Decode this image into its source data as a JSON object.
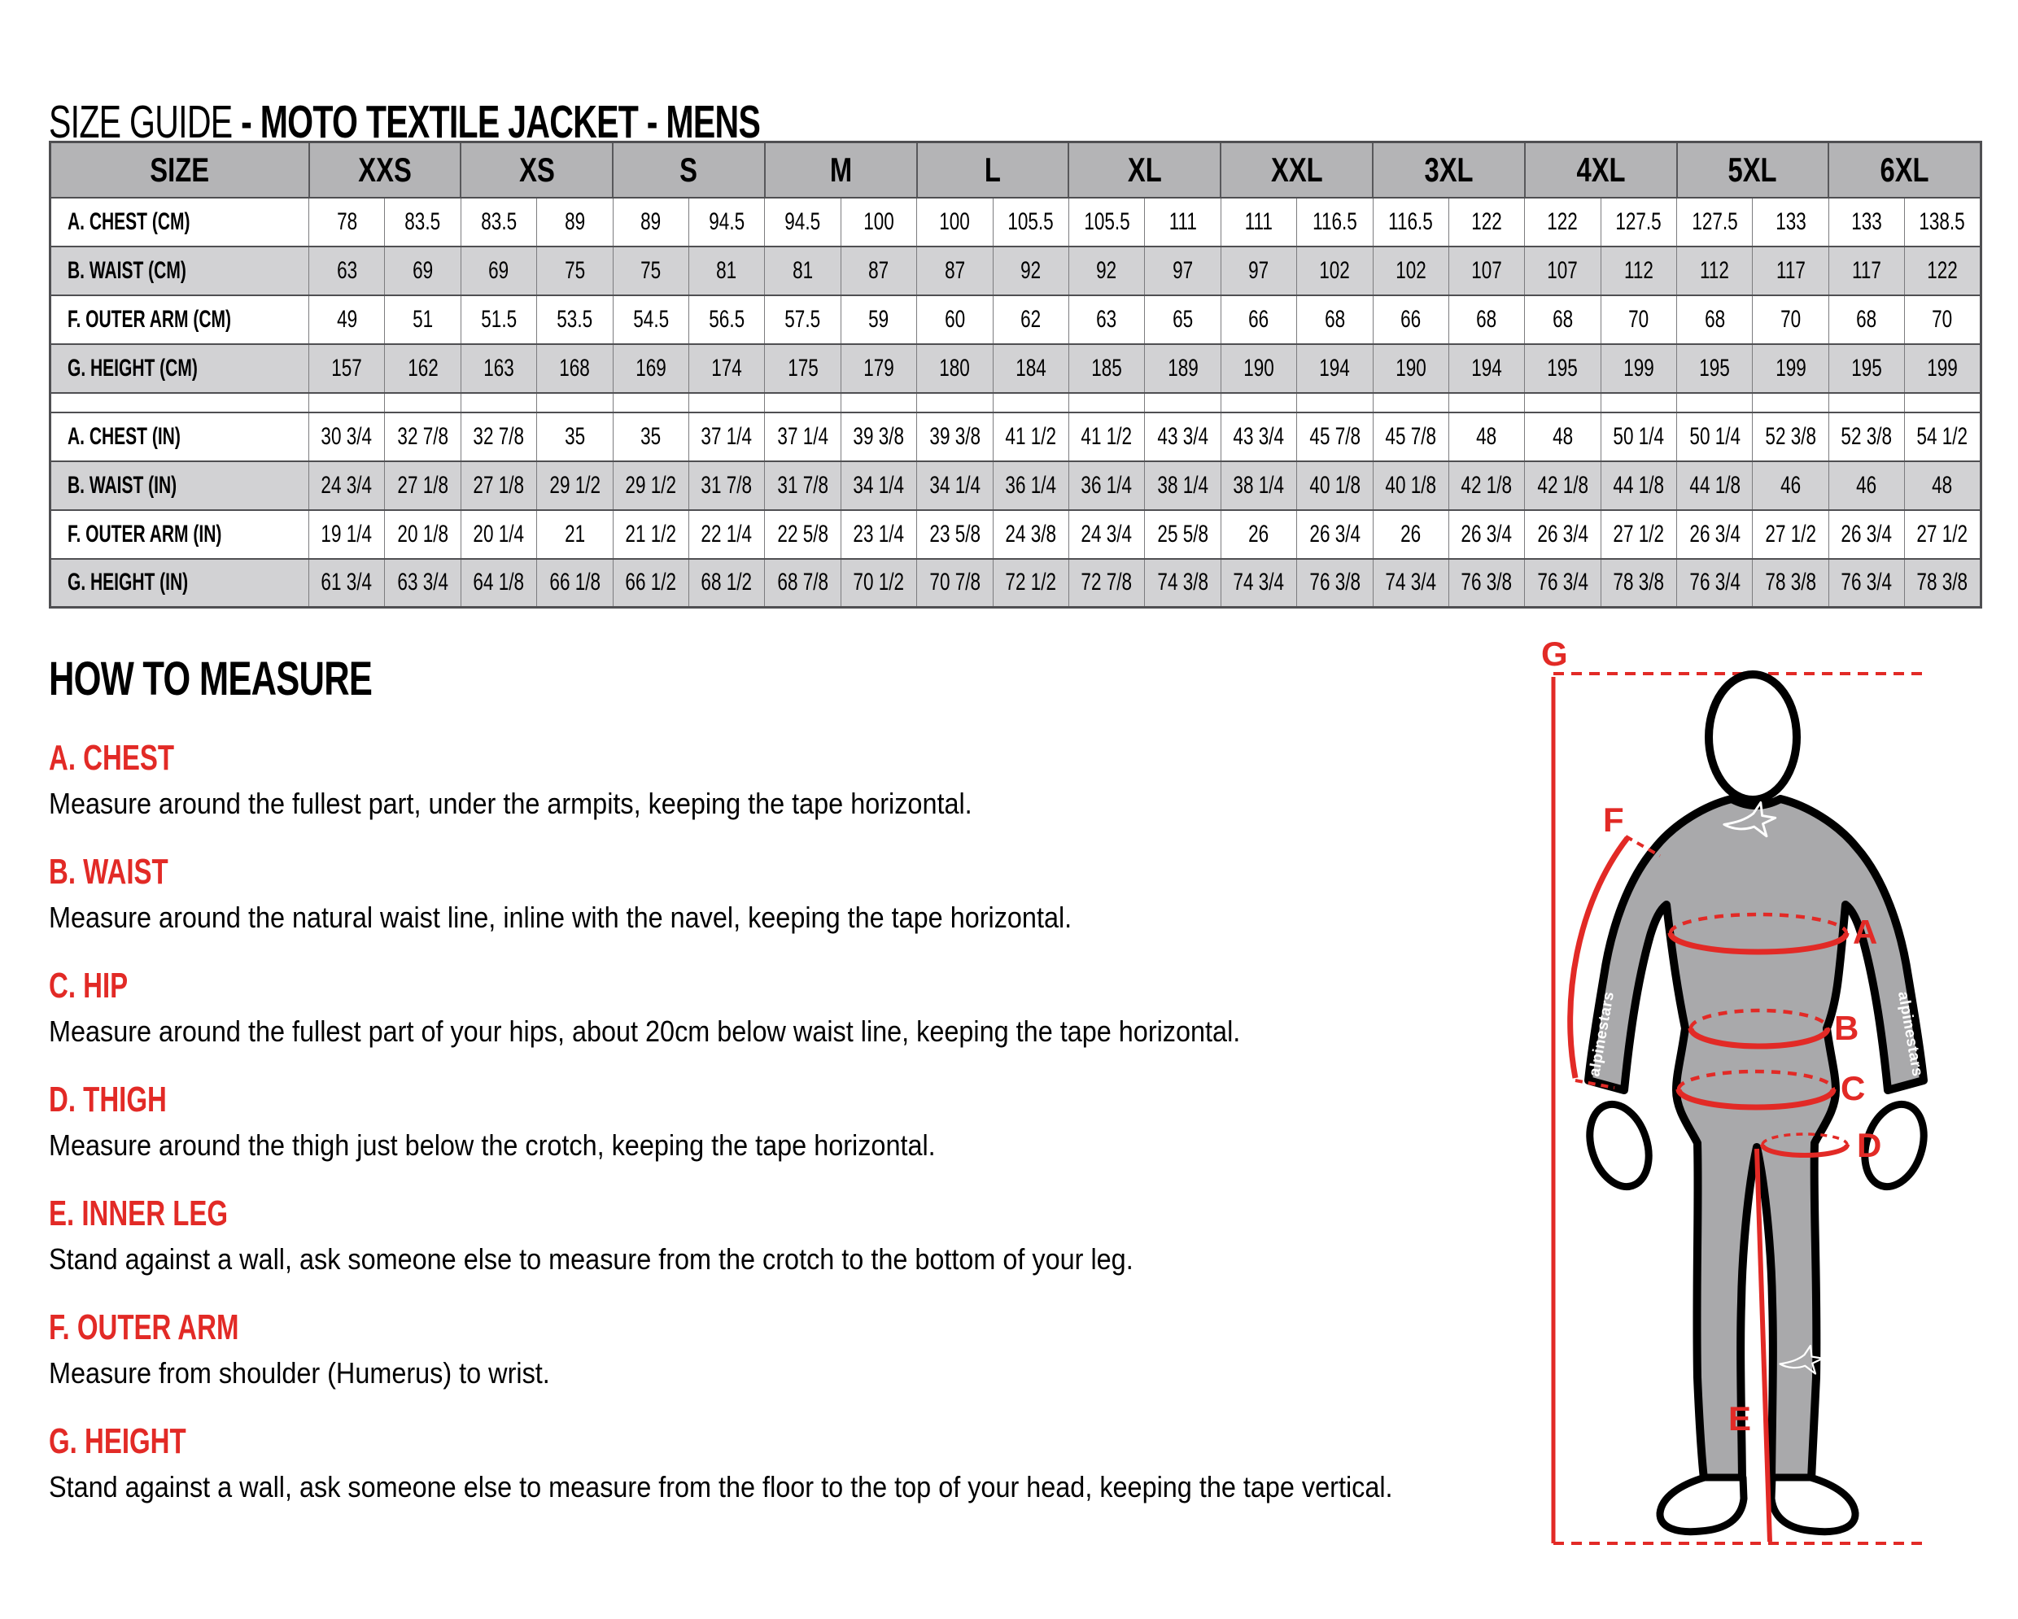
{
  "title": {
    "regular": "SIZE GUIDE ",
    "bold": "- MOTO TEXTILE JACKET - MENS"
  },
  "table": {
    "corner_label": "SIZE",
    "sizes": [
      "XXS",
      "XS",
      "S",
      "M",
      "L",
      "XL",
      "XXL",
      "3XL",
      "4XL",
      "5XL",
      "6XL"
    ],
    "rows_cm": [
      {
        "label": "A. CHEST (CM)",
        "values": [
          "78",
          "83.5",
          "83.5",
          "89",
          "89",
          "94.5",
          "94.5",
          "100",
          "100",
          "105.5",
          "105.5",
          "111",
          "111",
          "116.5",
          "116.5",
          "122",
          "122",
          "127.5",
          "127.5",
          "133",
          "133",
          "138.5"
        ]
      },
      {
        "label": "B. WAIST (CM)",
        "values": [
          "63",
          "69",
          "69",
          "75",
          "75",
          "81",
          "81",
          "87",
          "87",
          "92",
          "92",
          "97",
          "97",
          "102",
          "102",
          "107",
          "107",
          "112",
          "112",
          "117",
          "117",
          "122"
        ]
      },
      {
        "label": "F. OUTER ARM (CM)",
        "values": [
          "49",
          "51",
          "51.5",
          "53.5",
          "54.5",
          "56.5",
          "57.5",
          "59",
          "60",
          "62",
          "63",
          "65",
          "66",
          "68",
          "66",
          "68",
          "68",
          "70",
          "68",
          "70",
          "68",
          "70"
        ]
      },
      {
        "label": "G. HEIGHT (CM)",
        "values": [
          "157",
          "162",
          "163",
          "168",
          "169",
          "174",
          "175",
          "179",
          "180",
          "184",
          "185",
          "189",
          "190",
          "194",
          "190",
          "194",
          "195",
          "199",
          "195",
          "199",
          "195",
          "199"
        ]
      }
    ],
    "rows_in": [
      {
        "label": "A. CHEST (IN)",
        "values": [
          "30 3/4",
          "32 7/8",
          "32 7/8",
          "35",
          "35",
          "37 1/4",
          "37 1/4",
          "39 3/8",
          "39 3/8",
          "41 1/2",
          "41 1/2",
          "43 3/4",
          "43 3/4",
          "45 7/8",
          "45 7/8",
          "48",
          "48",
          "50 1/4",
          "50 1/4",
          "52 3/8",
          "52 3/8",
          "54 1/2"
        ]
      },
      {
        "label": "B. WAIST (IN)",
        "values": [
          "24 3/4",
          "27 1/8",
          "27 1/8",
          "29 1/2",
          "29 1/2",
          "31 7/8",
          "31 7/8",
          "34 1/4",
          "34 1/4",
          "36 1/4",
          "36 1/4",
          "38 1/4",
          "38 1/4",
          "40 1/8",
          "40 1/8",
          "42 1/8",
          "42 1/8",
          "44 1/8",
          "44 1/8",
          "46",
          "46",
          "48"
        ]
      },
      {
        "label": "F. OUTER ARM (IN)",
        "values": [
          "19 1/4",
          "20 1/8",
          "20 1/4",
          "21",
          "21 1/2",
          "22 1/4",
          "22 5/8",
          "23 1/4",
          "23 5/8",
          "24 3/8",
          "24 3/4",
          "25 5/8",
          "26",
          "26 3/4",
          "26",
          "26 3/4",
          "26 3/4",
          "27 1/2",
          "26 3/4",
          "27 1/2",
          "26 3/4",
          "27 1/2"
        ]
      },
      {
        "label": "G. HEIGHT (IN)",
        "values": [
          "61 3/4",
          "63 3/4",
          "64 1/8",
          "66 1/8",
          "66 1/2",
          "68 1/2",
          "68 7/8",
          "70 1/2",
          "70 7/8",
          "72 1/2",
          "72 7/8",
          "74 3/8",
          "74 3/4",
          "76 3/8",
          "74 3/4",
          "76 3/8",
          "76 3/4",
          "78 3/8",
          "76 3/4",
          "78 3/8",
          "76 3/4",
          "78 3/8"
        ]
      }
    ]
  },
  "how_to_measure": {
    "heading": "HOW TO MEASURE",
    "sections": [
      {
        "label": "A. CHEST",
        "text": "Measure around the fullest part, under the armpits, keeping the tape horizontal."
      },
      {
        "label": "B. WAIST",
        "text": "Measure around the natural waist line, inline with the navel, keeping the tape horizontal."
      },
      {
        "label": "C. HIP",
        "text": "Measure around the fullest part of your hips, about 20cm below waist line, keeping the tape horizontal."
      },
      {
        "label": "D. THIGH",
        "text": "Measure around the thigh just below the crotch, keeping the tape horizontal."
      },
      {
        "label": "E. INNER LEG",
        "text": "Stand against a wall, ask someone else to measure from the crotch to the bottom of your leg."
      },
      {
        "label": "F. OUTER ARM",
        "text": "Measure from shoulder (Humerus) to wrist."
      },
      {
        "label": "G. HEIGHT",
        "text": "Stand against a wall, ask someone else to measure from the floor to the top of your head, keeping the tape vertical."
      }
    ]
  },
  "figure": {
    "labels": {
      "g": "G",
      "f": "F",
      "a": "A",
      "b": "B",
      "c": "C",
      "d": "D",
      "e": "E"
    },
    "arm_text": "alpinestars"
  },
  "colors": {
    "accent_red": "#e22a26",
    "header_gray": "#b4b4b6",
    "stripe_gray": "#d2d2d4",
    "body_gray": "#a9a9ab",
    "border_dark": "#4f4f52",
    "border_light": "#7c7c7f"
  }
}
